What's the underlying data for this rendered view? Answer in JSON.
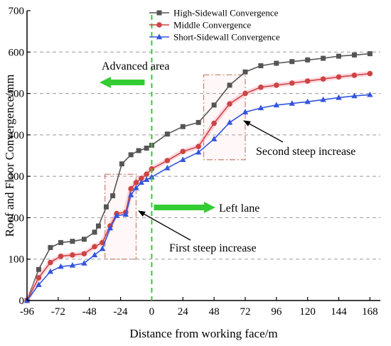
{
  "chart_data": {
    "type": "line",
    "title": "",
    "xlabel": "Distance from working face/m",
    "ylabel": "Roof and Floor Convergence/mm",
    "xlim": [
      -96,
      176
    ],
    "ylim": [
      0,
      700
    ],
    "xticks": [
      -96,
      -72,
      -48,
      -24,
      0,
      24,
      48,
      72,
      96,
      120,
      144,
      168
    ],
    "yticks": [
      0,
      100,
      200,
      300,
      400,
      500,
      600,
      700
    ],
    "grid": "horizontal dashed at 100, 200, 300, 400, 500, 600",
    "legend": "top-center",
    "series": [
      {
        "name": "High-Sidewall Convergence",
        "color": "#555555",
        "marker": "square",
        "x": [
          -96,
          -87,
          -78,
          -70,
          -61,
          -52,
          -44,
          -41,
          -35,
          -30,
          -23,
          -16,
          -10,
          -4,
          0,
          12,
          24,
          36,
          48,
          60,
          72,
          84,
          96,
          108,
          120,
          132,
          144,
          156,
          168
        ],
        "y": [
          0,
          75,
          128,
          140,
          143,
          148,
          165,
          180,
          226,
          253,
          330,
          352,
          362,
          368,
          375,
          402,
          420,
          430,
          472,
          520,
          552,
          567,
          573,
          577,
          581,
          585,
          590,
          593,
          596
        ]
      },
      {
        "name": "Middle Convergence",
        "color": "#cc4444",
        "marker": "circle",
        "x": [
          -96,
          -87,
          -78,
          -70,
          -61,
          -52,
          -44,
          -38,
          -32,
          -27,
          -20,
          -16,
          -12,
          -8,
          -4,
          0,
          12,
          24,
          36,
          48,
          60,
          72,
          84,
          96,
          108,
          120,
          132,
          144,
          156,
          168
        ],
        "y": [
          0,
          55,
          92,
          107,
          110,
          113,
          130,
          140,
          180,
          210,
          213,
          270,
          285,
          295,
          305,
          318,
          338,
          360,
          372,
          428,
          475,
          500,
          515,
          520,
          525,
          530,
          535,
          540,
          544,
          548
        ]
      },
      {
        "name": "Short-Sidewall Convergence",
        "color": "#3355dd",
        "marker": "triangle",
        "x": [
          -96,
          -87,
          -78,
          -70,
          -61,
          -52,
          -44,
          -38,
          -32,
          -27,
          -20,
          -16,
          -12,
          -8,
          -4,
          0,
          12,
          24,
          36,
          48,
          60,
          72,
          84,
          96,
          108,
          120,
          132,
          144,
          156,
          168
        ],
        "y": [
          0,
          38,
          70,
          82,
          85,
          90,
          110,
          125,
          175,
          205,
          208,
          255,
          272,
          285,
          292,
          298,
          320,
          340,
          358,
          390,
          430,
          455,
          465,
          472,
          476,
          480,
          485,
          490,
          494,
          497
        ]
      }
    ],
    "annotations": {
      "advanced_area": "Advanced area",
      "left_lane": "Left lane",
      "first_steep": "First steep increase",
      "second_steep": "Second steep increase"
    },
    "highlight_boxes": [
      {
        "x": [
          -36,
          -12
        ],
        "y": [
          100,
          305
        ]
      },
      {
        "x": [
          40,
          72
        ],
        "y": [
          340,
          545
        ]
      }
    ]
  }
}
